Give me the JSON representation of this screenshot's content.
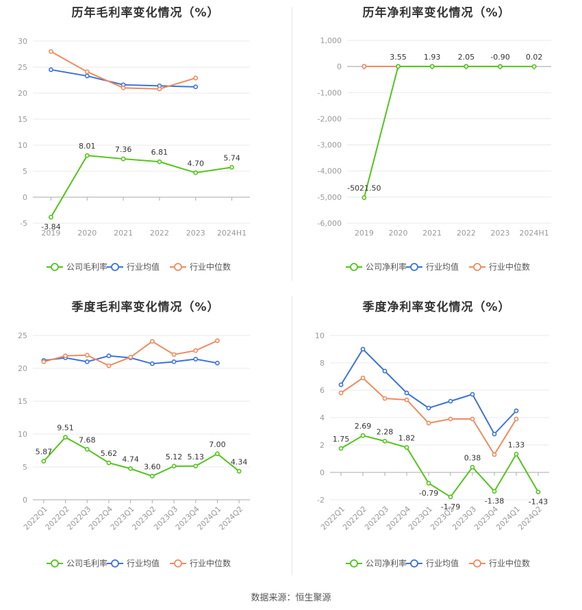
{
  "footer": "数据来源：恒生聚源",
  "colors": {
    "company": "#52c41a",
    "avg": "#3a72d9",
    "median": "#f08a5d",
    "axis": "#999999",
    "grid": "#e8e8e8",
    "label": "#333333"
  },
  "chart_data": [
    {
      "type": "line",
      "title": "历年毛利率变化情况（%）",
      "categories": [
        "2019",
        "2020",
        "2021",
        "2022",
        "2023",
        "2024H1"
      ],
      "ylim": [
        -5,
        30
      ],
      "yticks": [
        "-5",
        "0",
        "5",
        "10",
        "15",
        "20",
        "25",
        "30"
      ],
      "ytick_values": [
        -5,
        0,
        5,
        10,
        15,
        20,
        25,
        30
      ],
      "series": [
        {
          "name": "公司毛利率",
          "key": "company",
          "values": [
            -3.84,
            8.01,
            7.36,
            6.81,
            4.7,
            5.74
          ],
          "labels": [
            "-3.84",
            "8.01",
            "7.36",
            "6.81",
            "4.70",
            "5.74"
          ]
        },
        {
          "name": "行业均值",
          "key": "avg",
          "values": [
            24.5,
            23.3,
            21.6,
            21.4,
            21.2,
            null
          ]
        },
        {
          "name": "行业中位数",
          "key": "median",
          "values": [
            28.0,
            24.1,
            21.0,
            20.8,
            22.9,
            null
          ]
        }
      ],
      "grid": true,
      "legend": "bottom"
    },
    {
      "type": "line",
      "title": "历年净利率变化情况（%）",
      "categories": [
        "2019",
        "2020",
        "2021",
        "2022",
        "2023",
        "2024H1"
      ],
      "ylim": [
        -6000,
        1000
      ],
      "yticks": [
        "-6,000",
        "-5,000",
        "-4,000",
        "-3,000",
        "-2,000",
        "-1,000",
        "0",
        "1,000"
      ],
      "ytick_values": [
        -6000,
        -5000,
        -4000,
        -3000,
        -2000,
        -1000,
        0,
        1000
      ],
      "series": [
        {
          "name": "公司净利率",
          "key": "company",
          "values": [
            -5021.5,
            3.55,
            1.93,
            2.05,
            -0.9,
            0.02
          ],
          "labels": [
            "-5021.50",
            "3.55",
            "1.93",
            "2.05",
            "-0.90",
            "0.02"
          ]
        },
        {
          "name": "行业均值",
          "key": "avg",
          "values": [
            5,
            5,
            5,
            5,
            4,
            null
          ]
        },
        {
          "name": "行业中位数",
          "key": "median",
          "values": [
            5,
            5,
            5,
            4,
            3,
            null
          ]
        }
      ],
      "grid": true,
      "legend": "bottom"
    },
    {
      "type": "line",
      "title": "季度毛利率变化情况（%）",
      "categories": [
        "2022Q1",
        "2022Q2",
        "2022Q3",
        "2022Q4",
        "2023Q1",
        "2023Q2",
        "2023Q3",
        "2023Q4",
        "2024Q1",
        "2024Q2"
      ],
      "ylim": [
        0,
        25
      ],
      "yticks": [
        "0",
        "5",
        "10",
        "15",
        "20",
        "25"
      ],
      "ytick_values": [
        0,
        5,
        10,
        15,
        20,
        25
      ],
      "series": [
        {
          "name": "公司毛利率",
          "key": "company",
          "values": [
            5.87,
            9.51,
            7.68,
            5.62,
            4.74,
            3.6,
            5.12,
            5.13,
            7.0,
            4.34
          ],
          "labels": [
            "5.87",
            "9.51",
            "7.68",
            "5.62",
            "4.74",
            "3.60",
            "5.12",
            "5.13",
            "7.00",
            "4.34"
          ]
        },
        {
          "name": "行业均值",
          "key": "avg",
          "values": [
            21.2,
            21.6,
            21.0,
            21.9,
            21.6,
            20.7,
            21.0,
            21.4,
            20.8,
            null
          ]
        },
        {
          "name": "行业中位数",
          "key": "median",
          "values": [
            21.0,
            21.9,
            22.0,
            20.4,
            21.7,
            24.1,
            22.1,
            22.7,
            24.2,
            null
          ]
        }
      ],
      "grid": true,
      "legend": "bottom"
    },
    {
      "type": "line",
      "title": "季度净利率变化情况（%）",
      "categories": [
        "2022Q1",
        "2022Q2",
        "2022Q3",
        "2022Q4",
        "2023Q1",
        "2023Q2",
        "2023Q3",
        "2023Q4",
        "2024Q1",
        "2024Q2"
      ],
      "ylim": [
        -2,
        10
      ],
      "yticks": [
        "-2",
        "0",
        "2",
        "4",
        "6",
        "8",
        "10"
      ],
      "ytick_values": [
        -2,
        0,
        2,
        4,
        6,
        8,
        10
      ],
      "series": [
        {
          "name": "公司净利率",
          "key": "company",
          "values": [
            1.75,
            2.69,
            2.28,
            1.82,
            -0.79,
            -1.79,
            0.38,
            -1.38,
            1.33,
            -1.43
          ],
          "labels": [
            "1.75",
            "2.69",
            "2.28",
            "1.82",
            "-0.79",
            "-1.79",
            "0.38",
            "-1.38",
            "1.33",
            "-1.43"
          ]
        },
        {
          "name": "行业均值",
          "key": "avg",
          "values": [
            6.4,
            9.0,
            7.4,
            5.8,
            4.7,
            5.2,
            5.7,
            2.8,
            4.5,
            null
          ]
        },
        {
          "name": "行业中位数",
          "key": "median",
          "values": [
            5.8,
            6.9,
            5.4,
            5.3,
            3.6,
            3.9,
            3.9,
            1.3,
            3.9,
            null
          ]
        }
      ],
      "grid": true,
      "legend": "bottom"
    }
  ]
}
